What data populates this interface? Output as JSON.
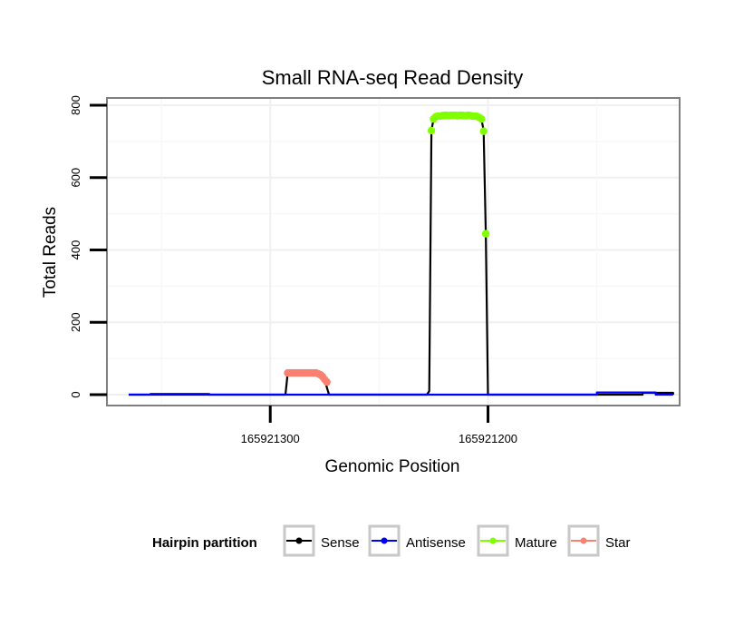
{
  "chart_data": {
    "type": "line",
    "title": "Small RNA-seq Read Density",
    "xlabel": "Genomic Position",
    "ylabel": "Total Reads",
    "x_reversed": true,
    "xlim": [
      165921375,
      165921112
    ],
    "ylim": [
      -30,
      820
    ],
    "x_ticks": [
      {
        "value": 165921300,
        "label": "165921300"
      },
      {
        "value": 165921200,
        "label": "165921200"
      }
    ],
    "y_ticks": [
      {
        "value": 0,
        "label": "0"
      },
      {
        "value": 200,
        "label": "200"
      },
      {
        "value": 400,
        "label": "400"
      },
      {
        "value": 600,
        "label": "600"
      },
      {
        "value": 800,
        "label": "800"
      }
    ],
    "grid": true,
    "legend_position": "bottom",
    "legend": {
      "title": "Hairpin partition",
      "items": [
        {
          "label": "Sense",
          "color": "#000000"
        },
        {
          "label": "Antisense",
          "color": "#0000ff"
        },
        {
          "label": "Mature",
          "color": "#7fff00"
        },
        {
          "label": "Star",
          "color": "#fa8072"
        }
      ]
    },
    "series": [
      {
        "name": "Sense",
        "color": "#000000",
        "points": [
          [
            165921365,
            0
          ],
          [
            165921308,
            0
          ],
          [
            165921293,
            0
          ],
          [
            165921292,
            60
          ],
          [
            165921276,
            60
          ],
          [
            165921275,
            45
          ],
          [
            165921274,
            20
          ],
          [
            165921273,
            0
          ],
          [
            165921237,
            0
          ],
          [
            165921228,
            0
          ],
          [
            165921227,
            10
          ],
          [
            165921226,
            730
          ],
          [
            165921225,
            762
          ],
          [
            165921222,
            770
          ],
          [
            165921205,
            770
          ],
          [
            165921203,
            762
          ],
          [
            165921202,
            730
          ],
          [
            165921201,
            445
          ],
          [
            165921200,
            0
          ],
          [
            165921175,
            0
          ],
          [
            165921129,
            0
          ],
          [
            165921129,
            5
          ],
          [
            165921115,
            5
          ],
          [
            165921115,
            0
          ]
        ]
      },
      {
        "name": "Antisense",
        "color": "#0000ff",
        "points": [
          [
            165921365,
            0
          ],
          [
            165921355,
            0
          ],
          [
            165921355,
            2
          ],
          [
            165921328,
            2
          ],
          [
            165921328,
            0
          ],
          [
            165921150,
            0
          ],
          [
            165921150,
            6
          ],
          [
            165921123,
            6
          ],
          [
            165921123,
            0
          ],
          [
            165921115,
            0
          ]
        ]
      },
      {
        "name": "Mature",
        "color": "#7fff00",
        "points": [
          [
            165921226,
            730
          ],
          [
            165921225,
            762
          ],
          [
            165921224,
            768
          ],
          [
            165921223,
            770
          ],
          [
            165921222,
            770
          ],
          [
            165921221,
            771
          ],
          [
            165921220,
            772
          ],
          [
            165921219,
            772
          ],
          [
            165921218,
            771
          ],
          [
            165921217,
            772
          ],
          [
            165921216,
            772
          ],
          [
            165921215,
            772
          ],
          [
            165921214,
            771
          ],
          [
            165921213,
            772
          ],
          [
            165921212,
            772
          ],
          [
            165921211,
            771
          ],
          [
            165921210,
            771
          ],
          [
            165921209,
            772
          ],
          [
            165921208,
            771
          ],
          [
            165921207,
            770
          ],
          [
            165921206,
            770
          ],
          [
            165921205,
            769
          ],
          [
            165921204,
            766
          ],
          [
            165921203,
            762
          ],
          [
            165921202,
            728
          ],
          [
            165921201,
            445
          ]
        ]
      },
      {
        "name": "Star",
        "color": "#fa8072",
        "points": [
          [
            165921292,
            60
          ],
          [
            165921291,
            60
          ],
          [
            165921290,
            60
          ],
          [
            165921289,
            60
          ],
          [
            165921288,
            60
          ],
          [
            165921287,
            60
          ],
          [
            165921286,
            60
          ],
          [
            165921285,
            60
          ],
          [
            165921284,
            60
          ],
          [
            165921283,
            60
          ],
          [
            165921282,
            60
          ],
          [
            165921281,
            60
          ],
          [
            165921280,
            60
          ],
          [
            165921279,
            60
          ],
          [
            165921278,
            58
          ],
          [
            165921277,
            55
          ],
          [
            165921276,
            50
          ],
          [
            165921275,
            42
          ],
          [
            165921274,
            35
          ]
        ]
      }
    ]
  }
}
